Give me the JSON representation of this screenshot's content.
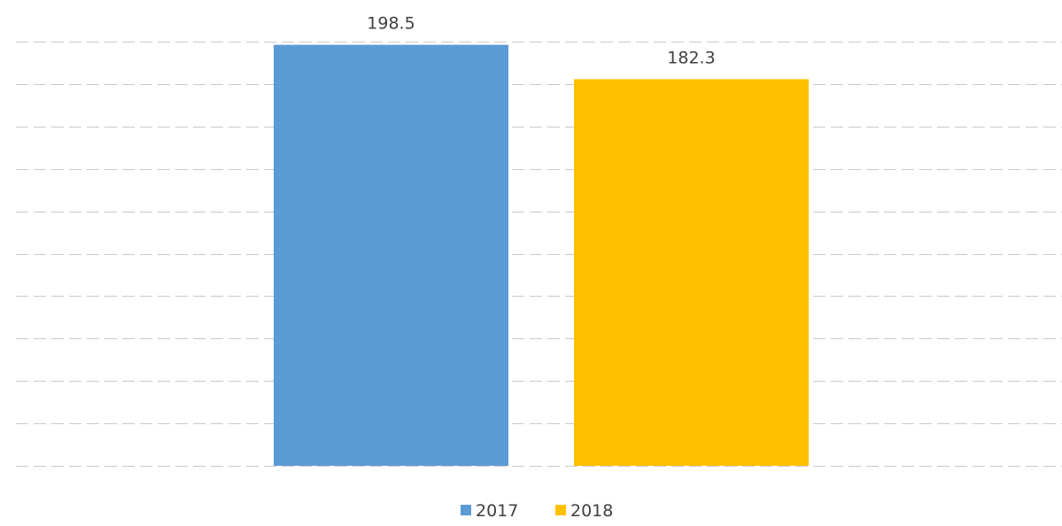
{
  "chart_data": {
    "type": "bar",
    "categories": [
      ""
    ],
    "series": [
      {
        "name": "2017",
        "values": [
          198.5
        ],
        "color": "#5b9bd5"
      },
      {
        "name": "2018",
        "values": [
          182.3
        ],
        "color": "#ffc000"
      }
    ],
    "data_labels": [
      "198.5",
      "182.3"
    ],
    "ylim": [
      0,
      200
    ],
    "grid": true,
    "legend": "bottom"
  }
}
